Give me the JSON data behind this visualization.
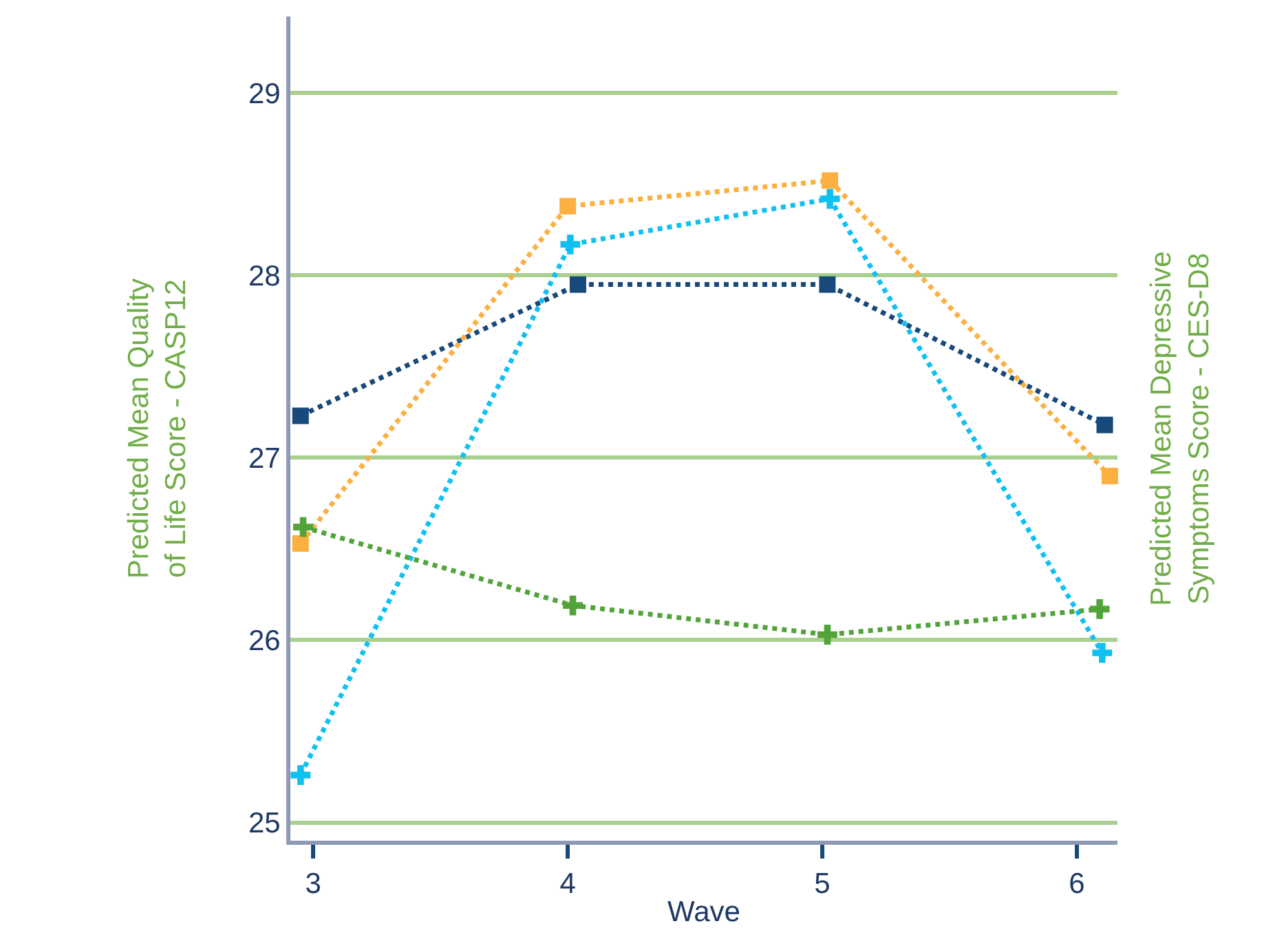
{
  "chart_data": {
    "type": "line",
    "xlabel": "Wave",
    "ylabel": "Predicted Mean Quality\nof Life Score - CASP12",
    "y2label": "Predicted Mean Depressive\nSymptoms Score - CES-D8",
    "xlim": [
      2.91,
      6.16
    ],
    "xticks": [
      3,
      4,
      5,
      6
    ],
    "ylim": [
      24.9,
      29.42
    ],
    "yticks": [
      25,
      26,
      27,
      28,
      29
    ],
    "grid": "y",
    "line_style": "dotted",
    "series": [
      {
        "color": "#17497a",
        "marker": "square",
        "x": [
          2.95,
          4.04,
          5.02,
          6.11
        ],
        "values": [
          27.23,
          27.95,
          27.95,
          27.18
        ]
      },
      {
        "color": "#fbb040",
        "marker": "square",
        "x": [
          2.95,
          4.0,
          5.03,
          6.13
        ],
        "values": [
          26.53,
          28.38,
          28.52,
          26.9
        ]
      },
      {
        "color": "#10c0f0",
        "marker": "cross",
        "x": [
          2.95,
          4.01,
          5.03,
          6.1
        ],
        "values": [
          25.26,
          28.17,
          28.42,
          25.93
        ]
      },
      {
        "color": "#52a43a",
        "marker": "cross",
        "x": [
          2.96,
          4.02,
          5.02,
          6.09
        ],
        "values": [
          26.62,
          26.19,
          26.03,
          26.17
        ]
      }
    ]
  }
}
